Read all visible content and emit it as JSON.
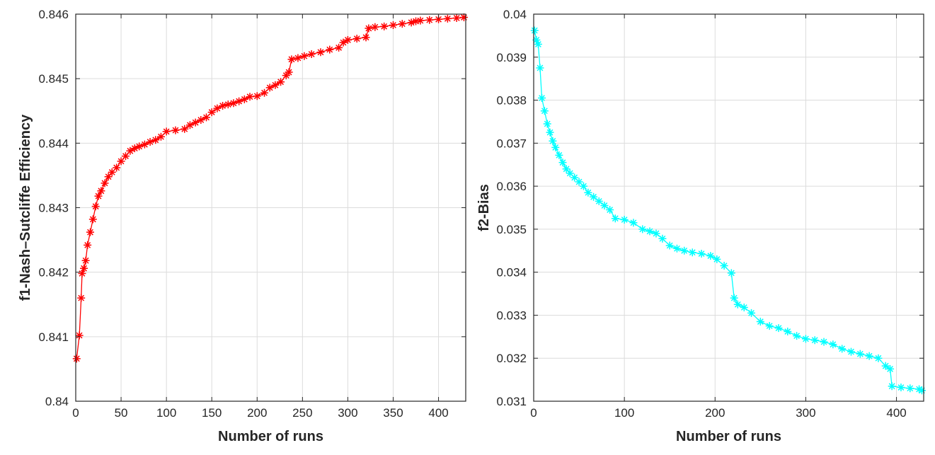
{
  "chart_data": [
    {
      "type": "line",
      "xlabel": "Number of runs",
      "ylabel": "f1-Nash–Sutcliffe Efficiency",
      "xlim": [
        0,
        430
      ],
      "ylim": [
        0.84,
        0.846
      ],
      "xticks": [
        0,
        50,
        100,
        150,
        200,
        250,
        300,
        350,
        400
      ],
      "yticks": [
        0.84,
        0.841,
        0.842,
        0.843,
        0.844,
        0.845,
        0.846
      ],
      "xtick_labels": [
        "0",
        "50",
        "100",
        "150",
        "200",
        "250",
        "300",
        "350",
        "400"
      ],
      "ytick_labels": [
        "0.84",
        "0.841",
        "0.842",
        "0.843",
        "0.844",
        "0.845",
        "0.846"
      ],
      "grid": true,
      "color": "#ff0000",
      "marker": "asterisk",
      "series": [
        {
          "x": [
            1,
            4,
            6,
            7,
            9,
            11,
            13,
            16,
            19,
            22,
            25,
            28,
            32,
            36,
            40,
            45,
            50,
            55,
            60,
            65,
            70,
            76,
            82,
            88,
            94,
            100,
            110,
            120,
            126,
            132,
            138,
            144,
            150,
            156,
            162,
            168,
            174,
            180,
            186,
            192,
            200,
            208,
            214,
            220,
            226,
            232,
            235,
            238,
            245,
            252,
            260,
            270,
            280,
            290,
            295,
            300,
            310,
            320,
            323,
            330,
            340,
            350,
            360,
            370,
            375,
            380,
            390,
            400,
            410,
            420,
            428
          ],
          "y": [
            0.84066,
            0.84102,
            0.8416,
            0.84198,
            0.84206,
            0.84218,
            0.84242,
            0.84262,
            0.84282,
            0.84302,
            0.84318,
            0.84326,
            0.84338,
            0.84348,
            0.84355,
            0.84362,
            0.84372,
            0.8438,
            0.84388,
            0.84392,
            0.84395,
            0.84398,
            0.84402,
            0.84405,
            0.8441,
            0.84418,
            0.8442,
            0.84422,
            0.84428,
            0.84432,
            0.84436,
            0.8444,
            0.84448,
            0.84454,
            0.84458,
            0.8446,
            0.84462,
            0.84465,
            0.84468,
            0.84472,
            0.84473,
            0.84478,
            0.84486,
            0.8449,
            0.84495,
            0.84505,
            0.8451,
            0.8453,
            0.84532,
            0.84535,
            0.84538,
            0.84541,
            0.84545,
            0.84548,
            0.84556,
            0.8456,
            0.84562,
            0.84564,
            0.84578,
            0.8458,
            0.84581,
            0.84583,
            0.84585,
            0.84587,
            0.84589,
            0.8459,
            0.84591,
            0.84592,
            0.84593,
            0.84594,
            0.84595
          ]
        }
      ]
    },
    {
      "type": "line",
      "xlabel": "Number of runs",
      "ylabel": "f2-Bias",
      "xlim": [
        0,
        430
      ],
      "ylim": [
        0.031,
        0.04
      ],
      "xticks": [
        0,
        100,
        200,
        300,
        400
      ],
      "yticks": [
        0.031,
        0.032,
        0.033,
        0.034,
        0.035,
        0.036,
        0.037,
        0.038,
        0.039,
        0.04
      ],
      "xtick_labels": [
        "0",
        "100",
        "200",
        "300",
        "400"
      ],
      "ytick_labels": [
        "0.031",
        "0.032",
        "0.033",
        "0.034",
        "0.035",
        "0.036",
        "0.037",
        "0.038",
        "0.039",
        "0.04"
      ],
      "grid": true,
      "color": "#00ffff",
      "marker": "asterisk",
      "series": [
        {
          "x": [
            1,
            3,
            5,
            7,
            9,
            12,
            15,
            18,
            21,
            24,
            28,
            32,
            36,
            40,
            45,
            50,
            55,
            60,
            66,
            72,
            78,
            84,
            90,
            100,
            110,
            120,
            128,
            135,
            142,
            150,
            158,
            166,
            175,
            185,
            195,
            202,
            210,
            218,
            221,
            225,
            232,
            240,
            250,
            260,
            270,
            280,
            290,
            300,
            310,
            320,
            330,
            340,
            350,
            360,
            370,
            380,
            388,
            393,
            395,
            405,
            415,
            425,
            428
          ],
          "y": [
            0.03962,
            0.0394,
            0.0393,
            0.03875,
            0.03805,
            0.03775,
            0.03745,
            0.03725,
            0.03705,
            0.0369,
            0.03672,
            0.03655,
            0.0364,
            0.0363,
            0.0362,
            0.0361,
            0.036,
            0.03585,
            0.03575,
            0.03565,
            0.03555,
            0.03545,
            0.03525,
            0.03522,
            0.03515,
            0.035,
            0.03495,
            0.0349,
            0.03478,
            0.03462,
            0.03455,
            0.0345,
            0.03446,
            0.03443,
            0.03438,
            0.0343,
            0.03415,
            0.03398,
            0.0334,
            0.03325,
            0.03318,
            0.03305,
            0.03285,
            0.03275,
            0.0327,
            0.03262,
            0.03252,
            0.03245,
            0.03242,
            0.03238,
            0.03232,
            0.03222,
            0.03215,
            0.0321,
            0.03205,
            0.032,
            0.03182,
            0.03175,
            0.03135,
            0.03132,
            0.0313,
            0.03128,
            0.03125
          ]
        }
      ]
    }
  ]
}
